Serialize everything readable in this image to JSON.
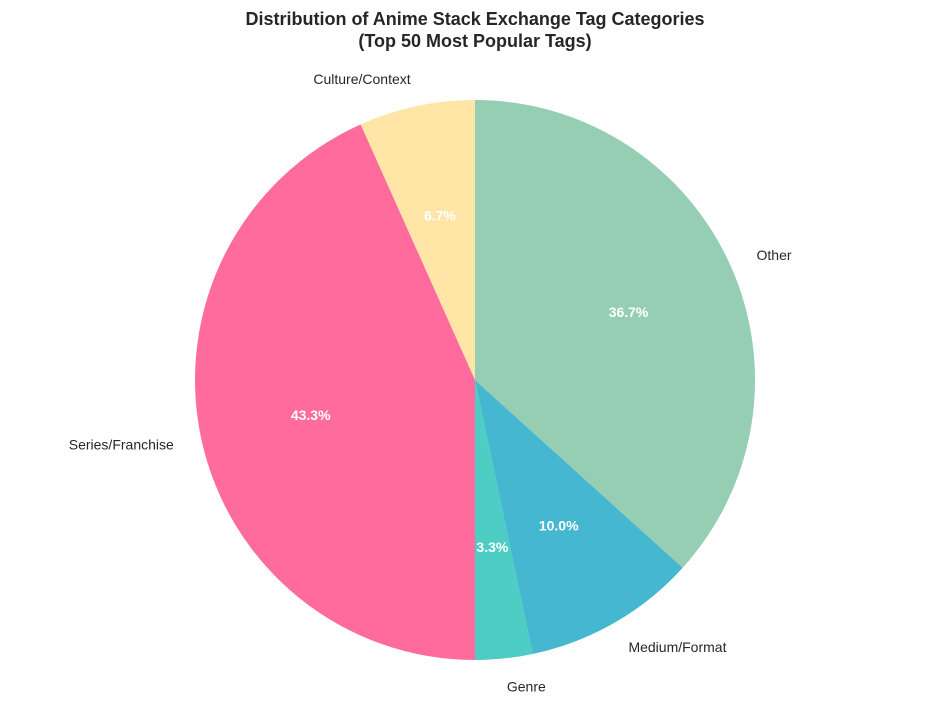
{
  "chart_data": {
    "type": "pie",
    "title": "Distribution of Anime Stack Exchange Tag Categories",
    "subtitle": "(Top 50 Most Popular Tags)",
    "start_angle_deg": 90,
    "direction": "counterclockwise",
    "slices": [
      {
        "label": "Culture/Context",
        "value": 6.7,
        "pct_label": "6.7%",
        "color": "#FFE6A7"
      },
      {
        "label": "Series/Franchise",
        "value": 43.3,
        "pct_label": "43.3%",
        "color": "#FF6B9D"
      },
      {
        "label": "Genre",
        "value": 3.3,
        "pct_label": "3.3%",
        "color": "#4ECDC4"
      },
      {
        "label": "Medium/Format",
        "value": 10.0,
        "pct_label": "10.0%",
        "color": "#45B7D1"
      },
      {
        "label": "Other",
        "value": 36.7,
        "pct_label": "36.7%",
        "color": "#96CEB4"
      }
    ]
  }
}
